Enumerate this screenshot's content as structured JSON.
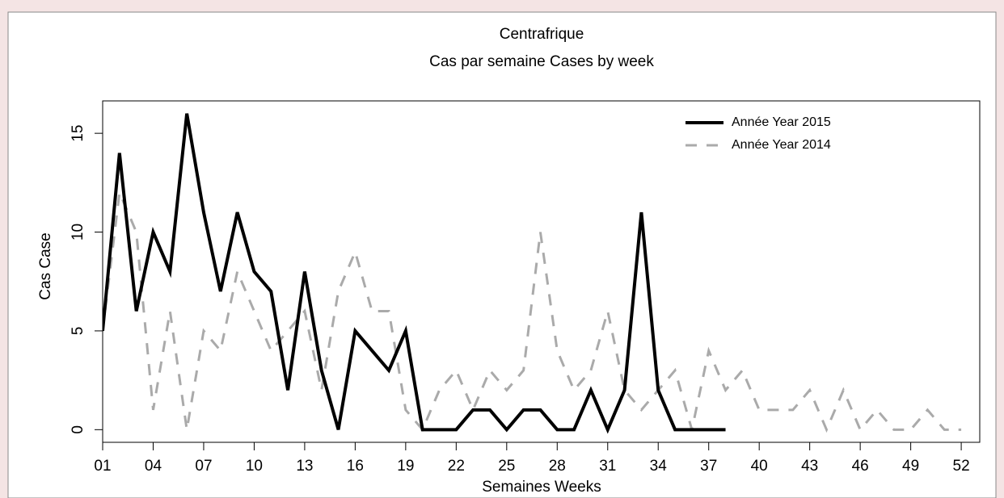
{
  "chart_data": {
    "type": "line",
    "title": "Centrafrique",
    "subtitle": "Cas par semaine Cases by week",
    "x_label": "Semaines Weeks",
    "y_label": "Cas Case",
    "x": [
      1,
      2,
      3,
      4,
      5,
      6,
      7,
      8,
      9,
      10,
      11,
      12,
      13,
      14,
      15,
      16,
      17,
      18,
      19,
      20,
      21,
      22,
      23,
      24,
      25,
      26,
      27,
      28,
      29,
      30,
      31,
      32,
      33,
      34,
      35,
      36,
      37,
      38,
      39,
      40,
      41,
      42,
      43,
      44,
      45,
      46,
      47,
      48,
      49,
      50,
      51,
      52
    ],
    "series": [
      {
        "name": "Année Year 2015",
        "color": "#000000",
        "dash": "solid",
        "values": [
          5,
          14,
          6,
          10,
          8,
          16,
          11,
          7,
          11,
          8,
          7,
          2,
          8,
          3,
          0,
          5,
          4,
          3,
          5,
          0,
          0,
          0,
          1,
          1,
          0,
          1,
          1,
          0,
          0,
          2,
          0,
          2,
          11,
          2,
          0,
          0,
          0,
          0,
          null,
          null,
          null,
          null,
          null,
          null,
          null,
          null,
          null,
          null,
          null,
          null,
          null,
          null
        ]
      },
      {
        "name": "Année Year 2014",
        "color": "#aaaaaa",
        "dash": "dashed",
        "values": [
          5,
          12,
          10,
          1,
          6,
          0,
          5,
          4,
          8,
          6,
          4,
          5,
          6,
          2,
          7,
          9,
          6,
          6,
          1,
          0,
          2,
          3,
          1,
          3,
          2,
          3,
          10,
          4,
          2,
          3,
          6,
          2,
          1,
          2,
          3,
          0,
          4,
          2,
          3,
          1,
          1,
          1,
          2,
          0,
          2,
          0,
          1,
          0,
          0,
          1,
          0,
          0
        ]
      }
    ],
    "xlim": [
      1,
      53.1
    ],
    "ylim": [
      -0.64,
      16.64
    ],
    "xticks": [
      {
        "value": 1,
        "label": "01"
      },
      {
        "value": 4,
        "label": "04"
      },
      {
        "value": 7,
        "label": "07"
      },
      10,
      13,
      16,
      19,
      22,
      25,
      28,
      31,
      34,
      37,
      40,
      43,
      46,
      49,
      52
    ],
    "yticks": [
      0,
      5,
      10,
      15
    ],
    "legend": "topright",
    "grid": false
  }
}
